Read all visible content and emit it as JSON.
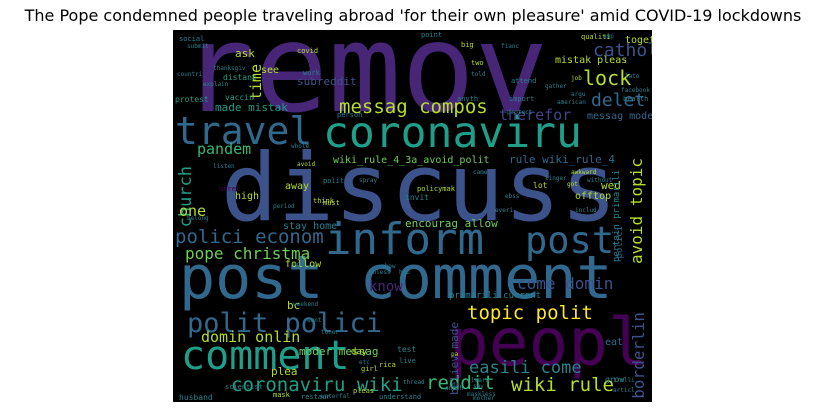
{
  "title": "The Pope condemned people traveling abroad 'for their own pleasure' amid COVID-19 lockdowns",
  "palette": {
    "background": "#000000",
    "purple": "#482677",
    "deep_purple": "#440154",
    "indigo": "#414487",
    "blue": "#3b528b",
    "steel": "#31688e",
    "teal": "#26828e",
    "cyan": "#1f9e89",
    "green": "#35b779",
    "lime": "#6ece58",
    "yellow": "#b5de2b",
    "bright_yellow": "#fde725"
  },
  "words": {
    "remov": "remov",
    "discuss": "discuss",
    "post_comment": "post comment",
    "coronaviru": "coronaviru",
    "inform": "inform",
    "travel": "travel",
    "peopl": "peopl",
    "comment": "comment",
    "polit_polici": "polit polici",
    "post": "post",
    "messag_compos": "messag compos",
    "topic_polit": "topic polit",
    "wiki_rule": "wiki rule",
    "reddit": "reddit",
    "coronaviru_wiki": "coronaviru wiki",
    "polici_econom": "polici econom",
    "easili_come": "easili come",
    "pope_christma": "pope christma",
    "come_domin": "come domin",
    "domin_onlin": "domin onlin",
    "lock": "lock",
    "cathol": "cathol",
    "delet": "delet",
    "therefor": "therefor",
    "pandem": "pandem",
    "church": "church",
    "avoid_topic": "avoid topic",
    "borderlin": "borderlin",
    "know": "know",
    "one": "one",
    "time": "time",
    "made_mistak": "made mistak",
    "mistak_pleas": "mistak pleas",
    "messag_moder": "messag moder",
    "wiki_rule_4_avoid": "wiki_rule_4_3a_avoid_polit",
    "rule_wiki_rule_4": "rule wiki_rule_4",
    "moder_messag": "moder messag",
    "primarili_current": "primarili current",
    "believ_made": "believ made",
    "stay_home": "stay home",
    "encourag_allow": "encourag allow",
    "subreddit": "subreddit",
    "togeth": "togeth",
    "ask": "ask",
    "see": "see",
    "wed": "wed",
    "offtop": "offtop",
    "follow": "follow",
    "plea": "plea",
    "high": "high",
    "bc": "bc",
    "away": "away",
    "pertain_primarili": "pertain primarili",
    "polici": "polici",
    "peopl_small": "peopl",
    "day": "day",
    "test": "test",
    "lot": "lot",
    "eat": "eat",
    "invit": "invit",
    "grow": "grow",
    "distanc": "distanc",
    "vaccin": "vaccin",
    "protest": "protest",
    "work": "work",
    "covid": "covid",
    "social": "social",
    "husband": "husband",
    "restaur": "restaur",
    "mask": "mask",
    "scientist": "scientist",
    "understand": "understand",
    "pleas": "pleas",
    "qualiti": "qualiti",
    "big": "big",
    "point": "point",
    "health": "health",
    "two": "two",
    "import": "import",
    "attend": "attend",
    "anyth": "anyth",
    "person": "person",
    "wait": "wait",
    "rica": "rica",
    "must": "must",
    "think": "think",
    "girl": "girl",
    "awkward": "awkward",
    "everi": "everi",
    "live": "live",
    "came": "came",
    "listen": "listen",
    "facebook": "facebook",
    "american": "american",
    "gather": "gather",
    "protect": "protect",
    "late": "late",
    "job": "job",
    "maskless": "maskless",
    "articl": "articl",
    "trolli": "trolli",
    "polit": "polit",
    "unrel": "unrel",
    "spray": "spray",
    "policymak": "policymak",
    "etc": "etc",
    "say": "say",
    "waterfal": "waterfal",
    "belong": "belong",
    "linger": "linger",
    "got": "got",
    "without": "without",
    "argu": "argu",
    "fianc": "fianc",
    "told": "told",
    "mother": "mother",
    "hub": "hub",
    "whole": "whole",
    "unless": "unless",
    "show": "show",
    "pa": "pa",
    "ebss": "ebss",
    "avoid": "avoid",
    "period": "period",
    "want": "want",
    "toner": "toner",
    "thread": "thread",
    "mod": "mod",
    "amp": "amp",
    "learn": "learn",
    "anoth": "anoth",
    "explain": "explain",
    "thanksgiv": "thanksgiv",
    "submit": "submit",
    "countri": "countri",
    "weekend": "weekend",
    "includ": "includ"
  }
}
